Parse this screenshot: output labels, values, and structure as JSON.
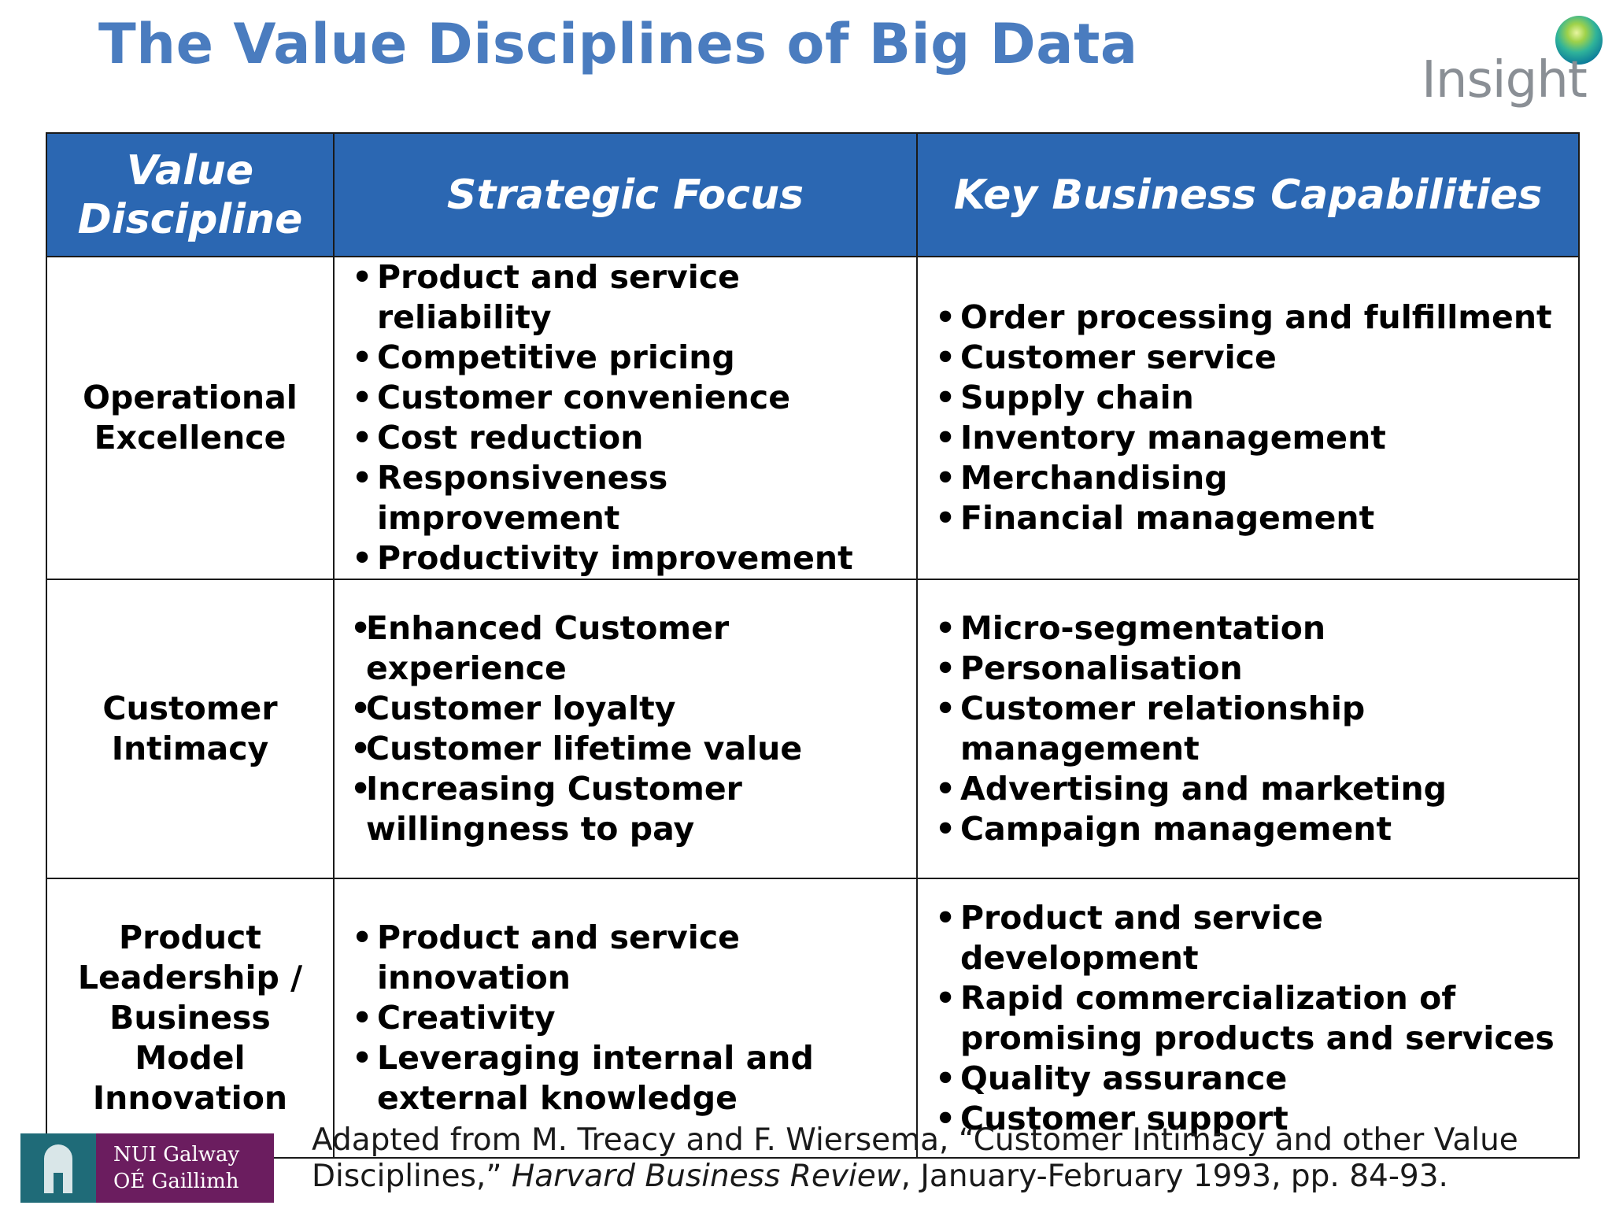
{
  "title": "The Value Disciplines of Big Data",
  "logo": {
    "text": "Insight",
    "icon": "insight-orb-icon"
  },
  "table": {
    "headers": [
      "Value Discipline",
      "Strategic Focus",
      "Key Business Capabilities"
    ],
    "rows": [
      {
        "discipline": [
          "Operational",
          "Excellence"
        ],
        "focus": [
          "Product and service reliability",
          "Competitive pricing",
          "Customer convenience",
          "Cost reduction",
          "Responsiveness improvement",
          "Productivity improvement"
        ],
        "capabilities": [
          "Order processing and fulfillment",
          "Customer service",
          "Supply chain",
          "Inventory management",
          "Merchandising",
          "Financial management"
        ]
      },
      {
        "discipline": [
          "Customer",
          "Intimacy"
        ],
        "focus": [
          "Enhanced Customer experience",
          "Customer loyalty",
          "Customer lifetime value",
          "Increasing Customer willingness to pay"
        ],
        "capabilities": [
          "Micro-segmentation",
          "Personalisation",
          "Customer relationship management",
          "Advertising and marketing",
          "Campaign management"
        ]
      },
      {
        "discipline": [
          "Product",
          "Leadership /",
          "Business",
          "Model",
          "Innovation"
        ],
        "focus": [
          "Product and service innovation",
          "Creativity",
          "Leveraging internal and external knowledge"
        ],
        "capabilities": [
          "Product and service development",
          "Rapid commercialization of promising products and services",
          "Quality assurance",
          "Customer support"
        ]
      }
    ]
  },
  "university_logo": {
    "line1": "NUI Galway",
    "line2": "OÉ Gaillimh"
  },
  "citation": {
    "prefix": "Adapted from  M. Treacy and F. Wiersema, “Customer Intimacy and other Value Disciplines,”",
    "journal": "Harvard Business Review",
    "suffix": ", January-February 1993, pp. 84-93."
  },
  "colors": {
    "title": "#4a7cbf",
    "header_bg": "#2b67b2",
    "nui_purple": "#6b1d5f",
    "nui_teal": "#1f6b78"
  }
}
